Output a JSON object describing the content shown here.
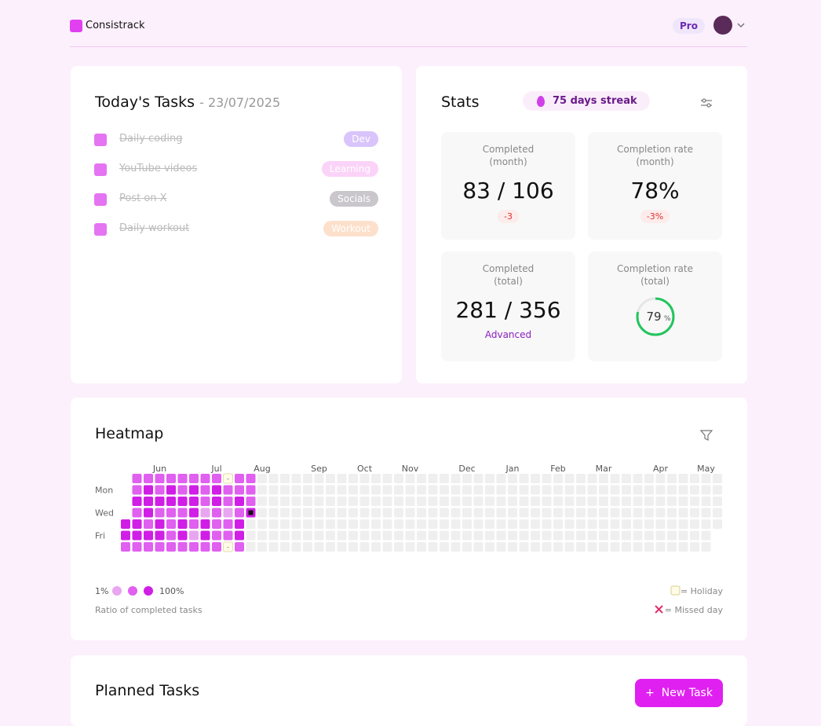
{
  "header": {
    "brand": "Consistrack",
    "plan": "Pro"
  },
  "tasks": {
    "title": "Today's Tasks",
    "date": "- 23/07/2025",
    "items": [
      {
        "name": "Daily coding",
        "tag": "Dev",
        "tag_color": "#d9c4fb"
      },
      {
        "name": "YouTube videos",
        "tag": "Learning",
        "tag_color": "#fbd3f8"
      },
      {
        "name": "Post on X",
        "tag": "Socials",
        "tag_color": "#c9c6cc"
      },
      {
        "name": "Daily workout",
        "tag": "Workout",
        "tag_color": "#fde0cc"
      }
    ]
  },
  "stats": {
    "title": "Stats",
    "streak": "75 days streak",
    "cards": [
      {
        "label": "Completed",
        "period": "(month)",
        "value": "83 / 106",
        "change": "-3"
      },
      {
        "label": "Completion rate",
        "period": "(month)",
        "value": "78%",
        "change": "-3%"
      },
      {
        "label": "Completed",
        "period": "(total)",
        "value": "281 / 356",
        "badge": "Advanced"
      },
      {
        "label": "Completion rate",
        "period": "(total)",
        "progress": 79,
        "progress_unit": "%"
      }
    ]
  },
  "heatmap": {
    "title": "Heatmap",
    "months": [
      {
        "label": "Jun",
        "week": 3
      },
      {
        "label": "Jul",
        "week": 8
      },
      {
        "label": "Aug",
        "week": 12
      },
      {
        "label": "Sep",
        "week": 17
      },
      {
        "label": "Oct",
        "week": 21
      },
      {
        "label": "Nov",
        "week": 25
      },
      {
        "label": "Dec",
        "week": 30
      },
      {
        "label": "Jan",
        "week": 34
      },
      {
        "label": "Feb",
        "week": 38
      },
      {
        "label": "Mar",
        "week": 42
      },
      {
        "label": "Apr",
        "week": 47
      },
      {
        "label": "May",
        "week": 51
      }
    ],
    "days": [
      {
        "label": "Mon",
        "row": 1
      },
      {
        "label": "Wed",
        "row": 3
      },
      {
        "label": "Fri",
        "row": 5
      }
    ],
    "colors": [
      "#efefef",
      "#e8a6f0",
      "#e060f0",
      "#d01ee6"
    ],
    "today": {
      "week": 11,
      "day": 3
    },
    "weeks": [
      [
        null,
        null,
        null,
        null,
        3,
        3,
        2
      ],
      [
        2,
        2,
        3,
        2,
        3,
        3,
        2
      ],
      [
        2,
        3,
        3,
        3,
        2,
        3,
        2
      ],
      [
        2,
        2,
        3,
        2,
        3,
        3,
        2
      ],
      [
        2,
        3,
        3,
        2,
        2,
        2,
        2
      ],
      [
        2,
        2,
        3,
        2,
        3,
        3,
        2
      ],
      [
        2,
        3,
        3,
        3,
        2,
        1,
        2
      ],
      [
        2,
        2,
        2,
        1,
        3,
        3,
        2
      ],
      [
        2,
        3,
        3,
        2,
        2,
        2,
        2
      ],
      [
        "-",
        2,
        2,
        1,
        2,
        2,
        "-"
      ],
      [
        2,
        2,
        3,
        2,
        3,
        3,
        2
      ],
      [
        2,
        2,
        2,
        3,
        0,
        0,
        0
      ],
      [
        0,
        0,
        0,
        0,
        0,
        0,
        0
      ],
      [
        0,
        0,
        0,
        0,
        0,
        0,
        0
      ],
      [
        0,
        0,
        0,
        0,
        0,
        0,
        0
      ],
      [
        0,
        0,
        0,
        0,
        0,
        0,
        0
      ],
      [
        0,
        0,
        0,
        0,
        0,
        0,
        0
      ],
      [
        0,
        0,
        0,
        0,
        0,
        0,
        0
      ],
      [
        0,
        0,
        0,
        0,
        0,
        0,
        0
      ],
      [
        0,
        0,
        0,
        0,
        0,
        0,
        0
      ],
      [
        0,
        0,
        0,
        0,
        0,
        0,
        0
      ],
      [
        0,
        0,
        0,
        0,
        0,
        0,
        0
      ],
      [
        0,
        0,
        0,
        0,
        0,
        0,
        0
      ],
      [
        0,
        0,
        0,
        0,
        0,
        0,
        0
      ],
      [
        0,
        0,
        0,
        0,
        0,
        0,
        0
      ],
      [
        0,
        0,
        0,
        0,
        0,
        0,
        0
      ],
      [
        0,
        0,
        0,
        0,
        0,
        0,
        0
      ],
      [
        0,
        0,
        0,
        0,
        0,
        0,
        0
      ],
      [
        0,
        0,
        0,
        0,
        0,
        0,
        0
      ],
      [
        0,
        0,
        0,
        0,
        0,
        0,
        0
      ],
      [
        0,
        0,
        0,
        0,
        0,
        0,
        0
      ],
      [
        0,
        0,
        0,
        0,
        0,
        0,
        0
      ],
      [
        0,
        0,
        0,
        0,
        0,
        0,
        0
      ],
      [
        0,
        0,
        0,
        0,
        0,
        0,
        0
      ],
      [
        0,
        0,
        0,
        0,
        0,
        0,
        0
      ],
      [
        0,
        0,
        0,
        0,
        0,
        0,
        0
      ],
      [
        0,
        0,
        0,
        0,
        0,
        0,
        0
      ],
      [
        0,
        0,
        0,
        0,
        0,
        0,
        0
      ],
      [
        0,
        0,
        0,
        0,
        0,
        0,
        0
      ],
      [
        0,
        0,
        0,
        0,
        0,
        0,
        0
      ],
      [
        0,
        0,
        0,
        0,
        0,
        0,
        0
      ],
      [
        0,
        0,
        0,
        0,
        0,
        0,
        0
      ],
      [
        0,
        0,
        0,
        0,
        0,
        0,
        0
      ],
      [
        0,
        0,
        0,
        0,
        0,
        0,
        0
      ],
      [
        0,
        0,
        0,
        0,
        0,
        0,
        0
      ],
      [
        0,
        0,
        0,
        0,
        0,
        0,
        0
      ],
      [
        0,
        0,
        0,
        0,
        0,
        0,
        0
      ],
      [
        0,
        0,
        0,
        0,
        0,
        0,
        0
      ],
      [
        0,
        0,
        0,
        0,
        0,
        0,
        0
      ],
      [
        0,
        0,
        0,
        0,
        0,
        0,
        0
      ],
      [
        0,
        0,
        0,
        0,
        0,
        0,
        0
      ],
      [
        0,
        0,
        0,
        0,
        0,
        0,
        0
      ],
      [
        0,
        0,
        0,
        0,
        0,
        null,
        null
      ]
    ],
    "legend_low": "1%",
    "legend_high": "100%",
    "legend_caption": "Ratio of completed tasks",
    "holiday": "= Holiday",
    "missed": "= Missed day"
  },
  "planned": {
    "title": "Planned Tasks",
    "button": "New Task"
  }
}
